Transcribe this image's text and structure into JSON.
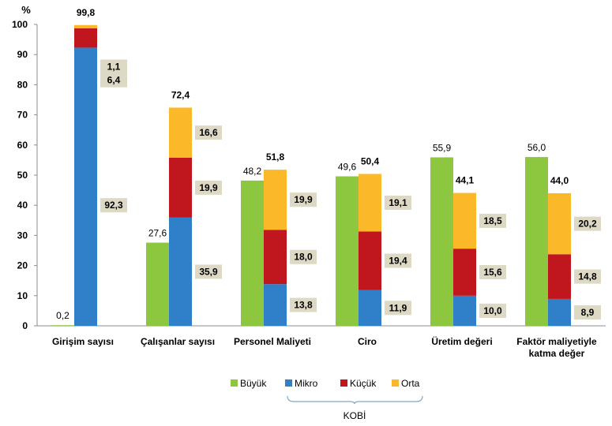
{
  "chart_data": {
    "type": "bar",
    "unit_label": "%",
    "ylim": [
      0,
      100
    ],
    "yticks": [
      0,
      10,
      20,
      30,
      40,
      50,
      60,
      70,
      80,
      90,
      100
    ],
    "grid": false,
    "legend_position": "bottom",
    "kobi_label": "KOBİ",
    "categories": [
      "Girişim sayısı",
      "Çalışanlar sayısı",
      "Personel Maliyeti",
      "Ciro",
      "Üretim değeri",
      "Faktör maliyetiyle katma değer"
    ],
    "category_lines": [
      [
        "Girişim sayısı"
      ],
      [
        "Çalışanlar sayısı"
      ],
      [
        "Personel Maliyeti"
      ],
      [
        "Ciro"
      ],
      [
        "Üretim değeri"
      ],
      [
        "Faktör maliyetiyle",
        "katma değer"
      ]
    ],
    "series": [
      {
        "name": "Büyük",
        "color": "#8DC63F",
        "values": [
          0.2,
          27.6,
          48.2,
          49.6,
          55.9,
          56.0
        ]
      },
      {
        "name": "Mikro",
        "color": "#2F80C8",
        "values": [
          92.3,
          35.9,
          13.8,
          11.9,
          10.0,
          8.9
        ]
      },
      {
        "name": "Küçük",
        "color": "#C0161E",
        "values": [
          6.4,
          19.9,
          18.0,
          19.4,
          15.6,
          14.8
        ]
      },
      {
        "name": "Orta",
        "color": "#FBB829",
        "values": [
          1.1,
          16.6,
          19.9,
          19.1,
          18.5,
          20.2
        ]
      }
    ],
    "kobi_totals": [
      99.8,
      72.4,
      51.8,
      50.4,
      44.1,
      44.0
    ],
    "label_box_color": "#DDD9C4"
  }
}
